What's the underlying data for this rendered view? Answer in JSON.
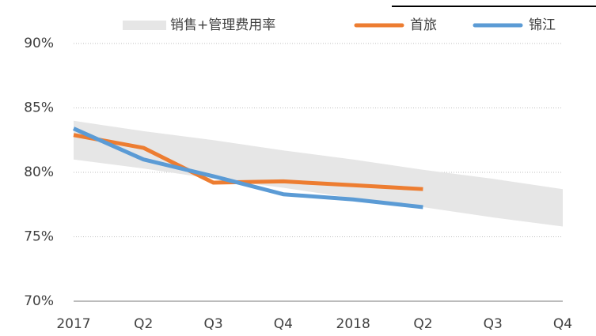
{
  "chart_data": {
    "type": "line",
    "categories": [
      "2017",
      "Q2",
      "Q3",
      "Q4",
      "2018",
      "Q2",
      "Q3",
      "Q4"
    ],
    "series": [
      {
        "name": "销售+管理费用率",
        "type": "band",
        "color": "#e6e6e6",
        "values": [
          84.0,
          83.2,
          82.5,
          81.7,
          81.0,
          80.2,
          79.5,
          78.7
        ],
        "lower": [
          81.0,
          80.3,
          79.5,
          78.8,
          78.0,
          77.3,
          76.5,
          75.8
        ]
      },
      {
        "name": "首旅",
        "type": "line",
        "color": "#ed7d31",
        "values": [
          82.9,
          81.9,
          79.2,
          79.3,
          79.0,
          78.7,
          null,
          null
        ]
      },
      {
        "name": "锦江",
        "type": "line",
        "color": "#5b9bd5",
        "values": [
          83.4,
          81.0,
          79.7,
          78.3,
          77.9,
          77.3,
          null,
          null
        ]
      }
    ],
    "ylim": [
      70,
      90
    ],
    "yticks": [
      {
        "value": 70,
        "label": "70%"
      },
      {
        "value": 75,
        "label": "75%"
      },
      {
        "value": 80,
        "label": "80%"
      },
      {
        "value": 85,
        "label": "85%"
      },
      {
        "value": 90,
        "label": "90%"
      }
    ],
    "grid": true,
    "legend": "top"
  }
}
